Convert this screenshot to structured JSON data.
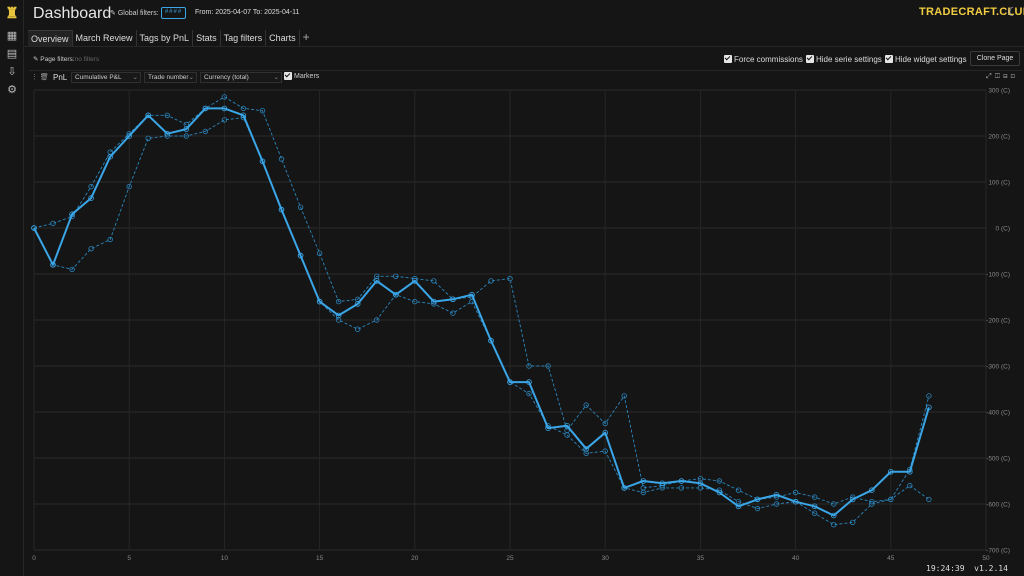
{
  "app": {
    "title": "Dashboard",
    "brand": "TRADECRAFT.CLUB",
    "theme_toggle_icon": "moon-icon"
  },
  "filters": {
    "global_label": "Global filters:",
    "global_chip": "####",
    "date_range": "From: 2025-04-07 To: 2025-04-11",
    "page_label": "Page filters:",
    "page_value": "no filters"
  },
  "tabs": [
    {
      "label": "Overview",
      "active": true
    },
    {
      "label": "March Review",
      "active": false
    },
    {
      "label": "Tags by PnL",
      "active": false
    },
    {
      "label": "Stats",
      "active": false
    },
    {
      "label": "Tag filters",
      "active": false
    },
    {
      "label": "Charts",
      "active": false
    }
  ],
  "add_tab_label": "+",
  "options": {
    "force_commissions": "Force commissions",
    "hide_serie": "Hide serie settings",
    "hide_widget": "Hide widget settings",
    "clone_page": "Clone Page"
  },
  "widget": {
    "name": "PnL",
    "metric": "Cumulative P&L",
    "x_axis": "Trade number",
    "currency": "Currency (total)",
    "markers_label": "Markers"
  },
  "footer": {
    "time": "19:24:39",
    "version": "v1.2.14"
  },
  "colors": {
    "accent": "#3aa6e8",
    "brand": "#f2cd41",
    "background": "#151515"
  },
  "chart_data": {
    "type": "line",
    "xlim": [
      0,
      50
    ],
    "ylim": [
      -700,
      300
    ],
    "x_ticks": [
      0,
      5,
      10,
      15,
      20,
      25,
      30,
      35,
      40,
      45,
      50
    ],
    "y_ticks": [
      300,
      200,
      100,
      0,
      -100,
      -200,
      -300,
      -400,
      -500,
      -600,
      -700
    ],
    "y_tick_suffix": " (C)",
    "grid": true,
    "series": [
      {
        "style": "solid",
        "x": [
          0,
          1,
          2,
          3,
          4,
          5,
          6,
          7,
          8,
          9,
          10,
          11,
          12,
          13,
          14,
          15,
          16,
          17,
          18,
          19,
          20,
          21,
          22,
          23,
          24,
          25,
          26,
          27,
          28,
          29,
          30,
          31,
          32,
          33,
          34,
          35,
          36,
          37,
          38,
          39,
          40,
          41,
          42,
          43,
          44,
          45,
          46,
          47
        ],
        "values": [
          0,
          -80,
          30,
          65,
          155,
          200,
          245,
          205,
          215,
          260,
          260,
          245,
          145,
          40,
          -60,
          -160,
          -190,
          -165,
          -115,
          -145,
          -115,
          -160,
          -155,
          -145,
          -245,
          -335,
          -335,
          -435,
          -430,
          -480,
          -445,
          -565,
          -550,
          -555,
          -550,
          -555,
          -575,
          -605,
          -590,
          -580,
          -595,
          -605,
          -625,
          -590,
          -570,
          -530,
          -530,
          -390
        ]
      },
      {
        "style": "dashed",
        "x": [
          0,
          1,
          2,
          3,
          4,
          5,
          6,
          7,
          8,
          9,
          10,
          11,
          12,
          13,
          14,
          15,
          16,
          17,
          18,
          19,
          20,
          21,
          22,
          23,
          24,
          25,
          26,
          27,
          28,
          29,
          30,
          31,
          32,
          33,
          34,
          35,
          36,
          37,
          38,
          39,
          40,
          41,
          42,
          43,
          44,
          45,
          46,
          47
        ],
        "values": [
          0,
          10,
          25,
          90,
          165,
          205,
          245,
          245,
          225,
          260,
          285,
          260,
          255,
          150,
          45,
          -55,
          -160,
          -155,
          -105,
          -105,
          -110,
          -115,
          -155,
          -150,
          -115,
          -110,
          -300,
          -300,
          -440,
          -385,
          -425,
          -365,
          -565,
          -560,
          -550,
          -545,
          -550,
          -570,
          -590,
          -585,
          -575,
          -585,
          -600,
          -585,
          -595,
          -590,
          -560,
          -590
        ]
      },
      {
        "style": "dashed",
        "x": [
          0,
          1,
          2,
          3,
          4,
          5,
          6,
          7,
          8,
          9,
          10,
          11,
          12,
          13,
          14,
          15,
          16,
          17,
          18,
          19,
          20,
          21,
          22,
          23,
          24,
          25,
          26,
          27,
          28,
          29,
          30,
          31,
          32,
          33,
          34,
          35,
          36,
          37,
          38,
          39,
          40,
          41,
          42,
          43,
          44,
          45,
          46,
          47
        ],
        "values": [
          0,
          -80,
          -90,
          -45,
          -25,
          90,
          195,
          200,
          200,
          210,
          235,
          240,
          145,
          40,
          -60,
          -160,
          -200,
          -220,
          -200,
          -145,
          -160,
          -165,
          -185,
          -160,
          -245,
          -335,
          -360,
          -430,
          -450,
          -490,
          -485,
          -565,
          -575,
          -565,
          -565,
          -565,
          -570,
          -595,
          -610,
          -600,
          -595,
          -620,
          -645,
          -640,
          -600,
          -590,
          -525,
          -365
        ]
      }
    ]
  }
}
